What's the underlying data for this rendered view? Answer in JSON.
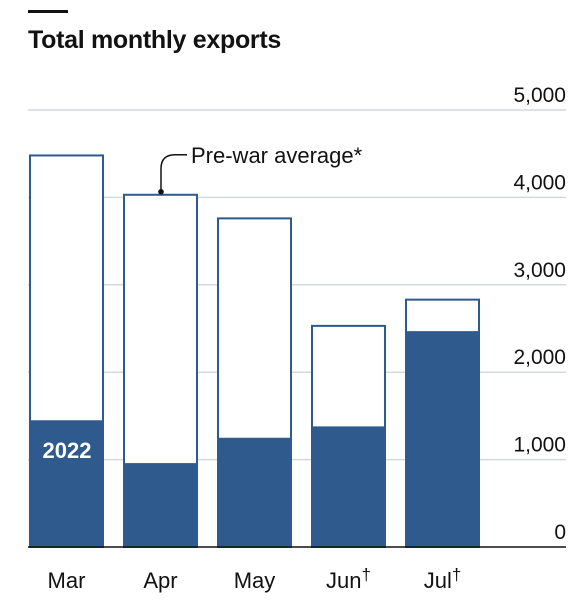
{
  "chart_data": {
    "type": "bar",
    "title": "Total monthly exports",
    "categories": [
      "Mar",
      "Apr",
      "May",
      "Jun",
      "Jul"
    ],
    "category_marks": [
      "",
      "",
      "",
      "†",
      "†"
    ],
    "series": [
      {
        "name": "2022",
        "values": [
          1450,
          960,
          1250,
          1380,
          2470
        ]
      },
      {
        "name": "Pre-war average*",
        "values": [
          4480,
          4030,
          3760,
          2530,
          2830
        ]
      }
    ],
    "ylim": [
      0,
      5000
    ],
    "yticks": [
      0,
      1000,
      2000,
      3000,
      4000,
      5000
    ],
    "ytick_labels": [
      "0",
      "1,000",
      "2,000",
      "3,000",
      "4,000",
      "5,000"
    ],
    "y_axis_side": "right",
    "grid": true,
    "annotations": [
      {
        "text": "Pre-war average*",
        "category": "Apr"
      },
      {
        "text": "2022",
        "category": "Mar"
      }
    ],
    "colors": {
      "filled": "#2e5a8e",
      "outline": "#2e5a8e",
      "grid": "#d4d9dd",
      "baseline": "#121212"
    }
  }
}
